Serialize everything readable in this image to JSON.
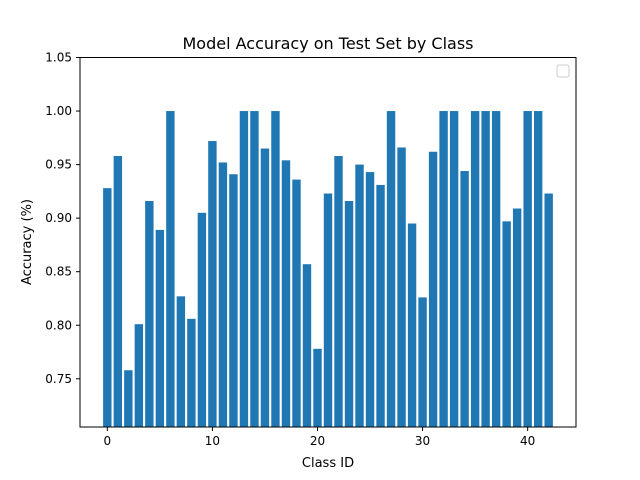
{
  "chart_data": {
    "type": "bar",
    "title": "Model Accuracy on Test Set by Class",
    "xlabel": "Class ID",
    "ylabel": "Accuracy (%)",
    "xlim": [
      -2.6,
      44.6
    ],
    "ylim": [
      0.705,
      1.05
    ],
    "xticks": [
      0,
      10,
      20,
      30,
      40
    ],
    "yticks": [
      0.75,
      0.8,
      0.85,
      0.9,
      0.95,
      1.0,
      1.05
    ],
    "grid": false,
    "legend": "top-right, empty",
    "bar_color": "#1f77b4",
    "categories": [
      0,
      1,
      2,
      3,
      4,
      5,
      6,
      7,
      8,
      9,
      10,
      11,
      12,
      13,
      14,
      15,
      16,
      17,
      18,
      19,
      20,
      21,
      22,
      23,
      24,
      25,
      26,
      27,
      28,
      29,
      30,
      31,
      32,
      33,
      34,
      35,
      36,
      37,
      38,
      39,
      40,
      41,
      42
    ],
    "values": [
      0.928,
      0.958,
      0.758,
      0.801,
      0.916,
      0.889,
      1.0,
      0.827,
      0.806,
      0.905,
      0.972,
      0.952,
      0.941,
      1.0,
      1.0,
      0.965,
      1.0,
      0.954,
      0.936,
      0.857,
      0.778,
      0.923,
      0.958,
      0.916,
      0.95,
      0.943,
      0.931,
      1.0,
      0.966,
      0.895,
      0.826,
      0.962,
      1.0,
      1.0,
      0.944,
      1.0,
      1.0,
      1.0,
      0.897,
      0.909,
      1.0,
      1.0,
      0.923
    ]
  }
}
